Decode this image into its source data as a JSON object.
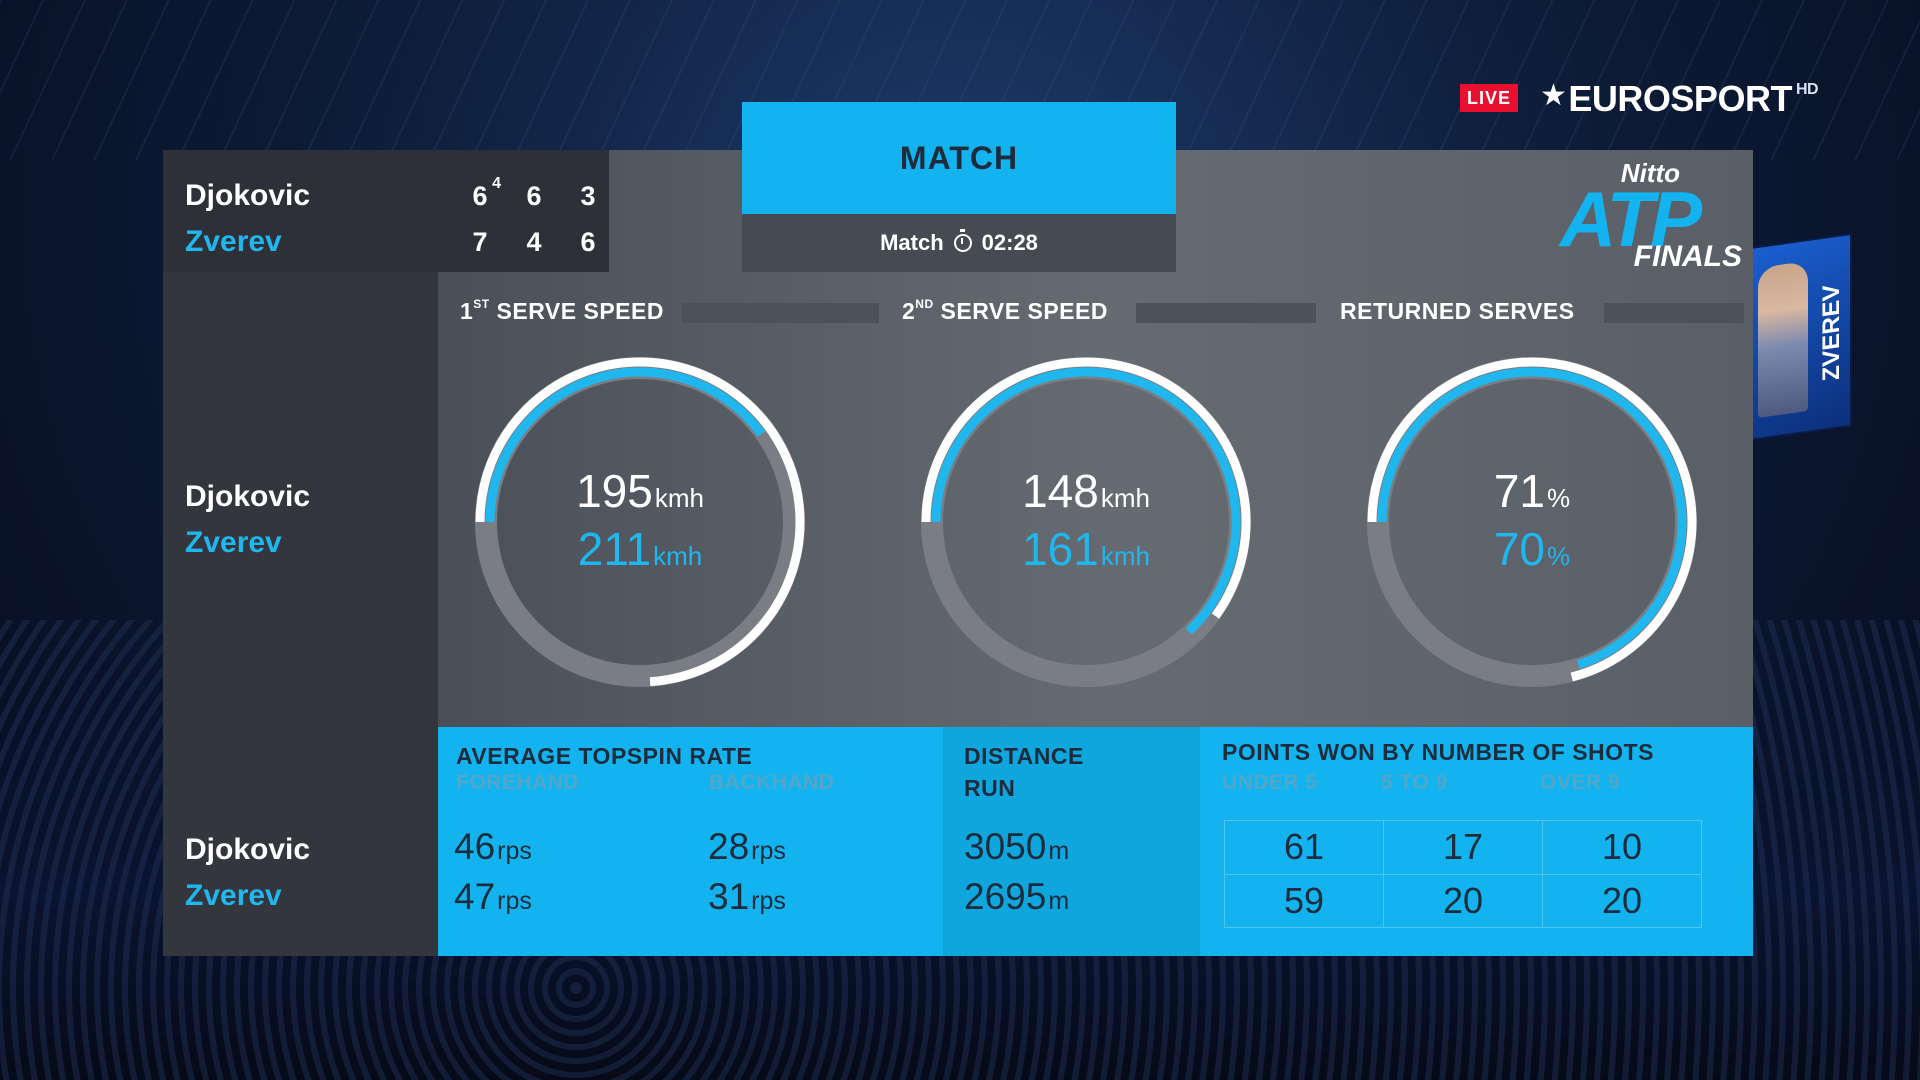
{
  "broadcast": {
    "live_label": "LIVE",
    "channel": "EUROSPORT",
    "channel_suffix": "HD",
    "jumbotron_name": "ZVEREV"
  },
  "scoreboard": {
    "players": [
      {
        "name": "Djokovic",
        "sets": [
          "6",
          "6",
          "3"
        ],
        "tiebreak": "4",
        "color": "#ffffff"
      },
      {
        "name": "Zverev",
        "sets": [
          "7",
          "4",
          "6"
        ],
        "color": "#1fb7ee"
      }
    ]
  },
  "match": {
    "title": "MATCH",
    "time_label": "Match",
    "time_value": "02:28",
    "clock_icon": "stopwatch-icon"
  },
  "logo": {
    "line1": "Nitto",
    "line2": "ATP",
    "line3": "FINALS"
  },
  "stats_headers": {
    "first_serve": {
      "sup": "ST",
      "pre": "1",
      "label": "SERVE SPEED"
    },
    "second_serve": {
      "sup": "ND",
      "pre": "2",
      "label": "SERVE SPEED"
    },
    "returned": "RETURNED SERVES"
  },
  "mid_names": [
    "Djokovic",
    "Zverev"
  ],
  "gauges": [
    {
      "djokovic_value": "195",
      "djokovic_unit": "kmh",
      "zverev_value": "211",
      "zverev_unit": "kmh",
      "djokovic_fraction": 0.74,
      "zverev_fraction": 0.4
    },
    {
      "djokovic_value": "148",
      "djokovic_unit": "kmh",
      "zverev_value": "161",
      "zverev_unit": "kmh",
      "djokovic_fraction": 0.6,
      "zverev_fraction": 0.63
    },
    {
      "djokovic_value": "71",
      "djokovic_unit": "%",
      "zverev_value": "70",
      "zverev_unit": "%",
      "djokovic_fraction": 0.71,
      "zverev_fraction": 0.7
    }
  ],
  "bottom": {
    "topspin_title": "AVERAGE TOPSPIN RATE",
    "forehand_label": "FOREHAND",
    "backhand_label": "BACKHAND",
    "forehand": [
      {
        "value": "46",
        "unit": "rps"
      },
      {
        "value": "47",
        "unit": "rps"
      }
    ],
    "backhand": [
      {
        "value": "28",
        "unit": "rps"
      },
      {
        "value": "31",
        "unit": "rps"
      }
    ],
    "distance_title_1": "DISTANCE",
    "distance_title_2": "RUN",
    "distance": [
      {
        "value": "3050",
        "unit": "m"
      },
      {
        "value": "2695",
        "unit": "m"
      }
    ],
    "points_title": "POINTS WON BY NUMBER OF SHOTS",
    "points_cols": [
      "UNDER 5",
      "5 TO 9",
      "OVER 9"
    ],
    "points_rows": [
      [
        "61",
        "17",
        "10"
      ],
      [
        "59",
        "20",
        "20"
      ]
    ],
    "names": [
      "Djokovic",
      "Zverev"
    ]
  },
  "colors": {
    "accent": "#12b3ee",
    "zverev": "#1fb7ee",
    "djokovic": "#ffffff",
    "live": "#e8102e"
  }
}
